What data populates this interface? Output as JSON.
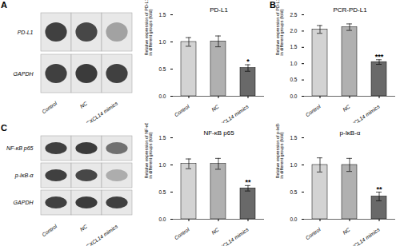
{
  "chart_data": [
    {
      "type": "western_blot",
      "annotations": [
        {
          "text": "A"
        }
      ],
      "categories": [
        "Control",
        "NC",
        "CXCL14 mimics"
      ],
      "series": [
        {
          "name": "PD-L1",
          "values": [
            0.85,
            0.82,
            0.35
          ]
        },
        {
          "name": "GAPDH",
          "values": [
            0.85,
            0.88,
            0.85
          ]
        }
      ]
    },
    {
      "type": "bar",
      "title": "PD-L1",
      "categories": [
        "Control",
        "NC",
        "CXCL14 mimics"
      ],
      "values": [
        1.0,
        1.01,
        0.52
      ],
      "errors": [
        0.08,
        0.1,
        0.06
      ],
      "colors": [
        "#d3d3d3",
        "#b0b0b0",
        "#696969"
      ],
      "ylabel": "Relative expression of PD-L1\nin different groups (fold)",
      "ylim": [
        0,
        1.5
      ],
      "yticks": [
        {
          "value": 0,
          "label": "0.0"
        },
        0.5,
        {
          "value": 1,
          "label": "1.0"
        },
        1.5
      ],
      "annotations": [
        {
          "x": "CXCL14 mimics",
          "text": "*"
        }
      ]
    },
    {
      "type": "bar",
      "title": "PCR-PD-L1",
      "categories": [
        "Control",
        "NC",
        "CXCL14 mimics"
      ],
      "values": [
        2.05,
        2.12,
        1.05
      ],
      "errors": [
        0.12,
        0.1,
        0.07
      ],
      "colors": [
        "#d3d3d3",
        "#b0b0b0",
        "#696969"
      ],
      "ylabel": "Relative expression of PD-L1\nin different groups (fold)",
      "ylim": [
        0,
        2.5
      ],
      "yticks": [
        {
          "value": 0,
          "label": "0.0"
        },
        0.5,
        {
          "value": 1,
          "label": "1.0"
        },
        1.5,
        {
          "value": 2,
          "label": "2.0"
        },
        2.5
      ],
      "annotations": [
        {
          "text": "B"
        },
        {
          "x": "CXCL14 mimics",
          "text": "***"
        }
      ]
    },
    {
      "type": "western_blot",
      "annotations": [
        {
          "text": "C"
        }
      ],
      "categories": [
        "Control",
        "NC",
        "CXCL14 mimics"
      ],
      "series": [
        {
          "name": "NF-κB p65",
          "values": [
            0.85,
            0.88,
            0.6
          ]
        },
        {
          "name": "p-IκB-α",
          "values": [
            0.85,
            0.82,
            0.3
          ]
        },
        {
          "name": "GAPDH",
          "values": [
            0.85,
            0.88,
            0.85
          ]
        }
      ]
    },
    {
      "type": "bar",
      "title": "NF-κB p65",
      "categories": [
        "Control",
        "NC",
        "CXCL14 mimics"
      ],
      "values": [
        1.02,
        1.02,
        0.57
      ],
      "errors": [
        0.09,
        0.1,
        0.05
      ],
      "colors": [
        "#d3d3d3",
        "#b0b0b0",
        "#696969"
      ],
      "ylabel": "Relative expression of NF-κB p65\nin different groups (fold)",
      "ylim": [
        0,
        1.5
      ],
      "yticks": [
        {
          "value": 0,
          "label": "0.0"
        },
        0.5,
        {
          "value": 1,
          "label": "1.0"
        },
        1.5
      ],
      "annotations": [
        {
          "x": "CXCL14 mimics",
          "text": "**"
        }
      ]
    },
    {
      "type": "bar",
      "title": "p-IκB-α",
      "categories": [
        "Control",
        "NC",
        "CXCL14 mimics"
      ],
      "values": [
        1.0,
        1.0,
        0.42
      ],
      "errors": [
        0.13,
        0.12,
        0.08
      ],
      "colors": [
        "#d3d3d3",
        "#b0b0b0",
        "#696969"
      ],
      "ylabel": "Relative expression of p-IκB-α\nin different groups (fold)",
      "ylim": [
        0,
        1.5
      ],
      "yticks": [
        {
          "value": 0,
          "label": "0.0"
        },
        0.5,
        {
          "value": 1,
          "label": "1.0"
        },
        1.5
      ],
      "annotations": [
        {
          "x": "CXCL14 mimics",
          "text": "**"
        }
      ]
    }
  ]
}
